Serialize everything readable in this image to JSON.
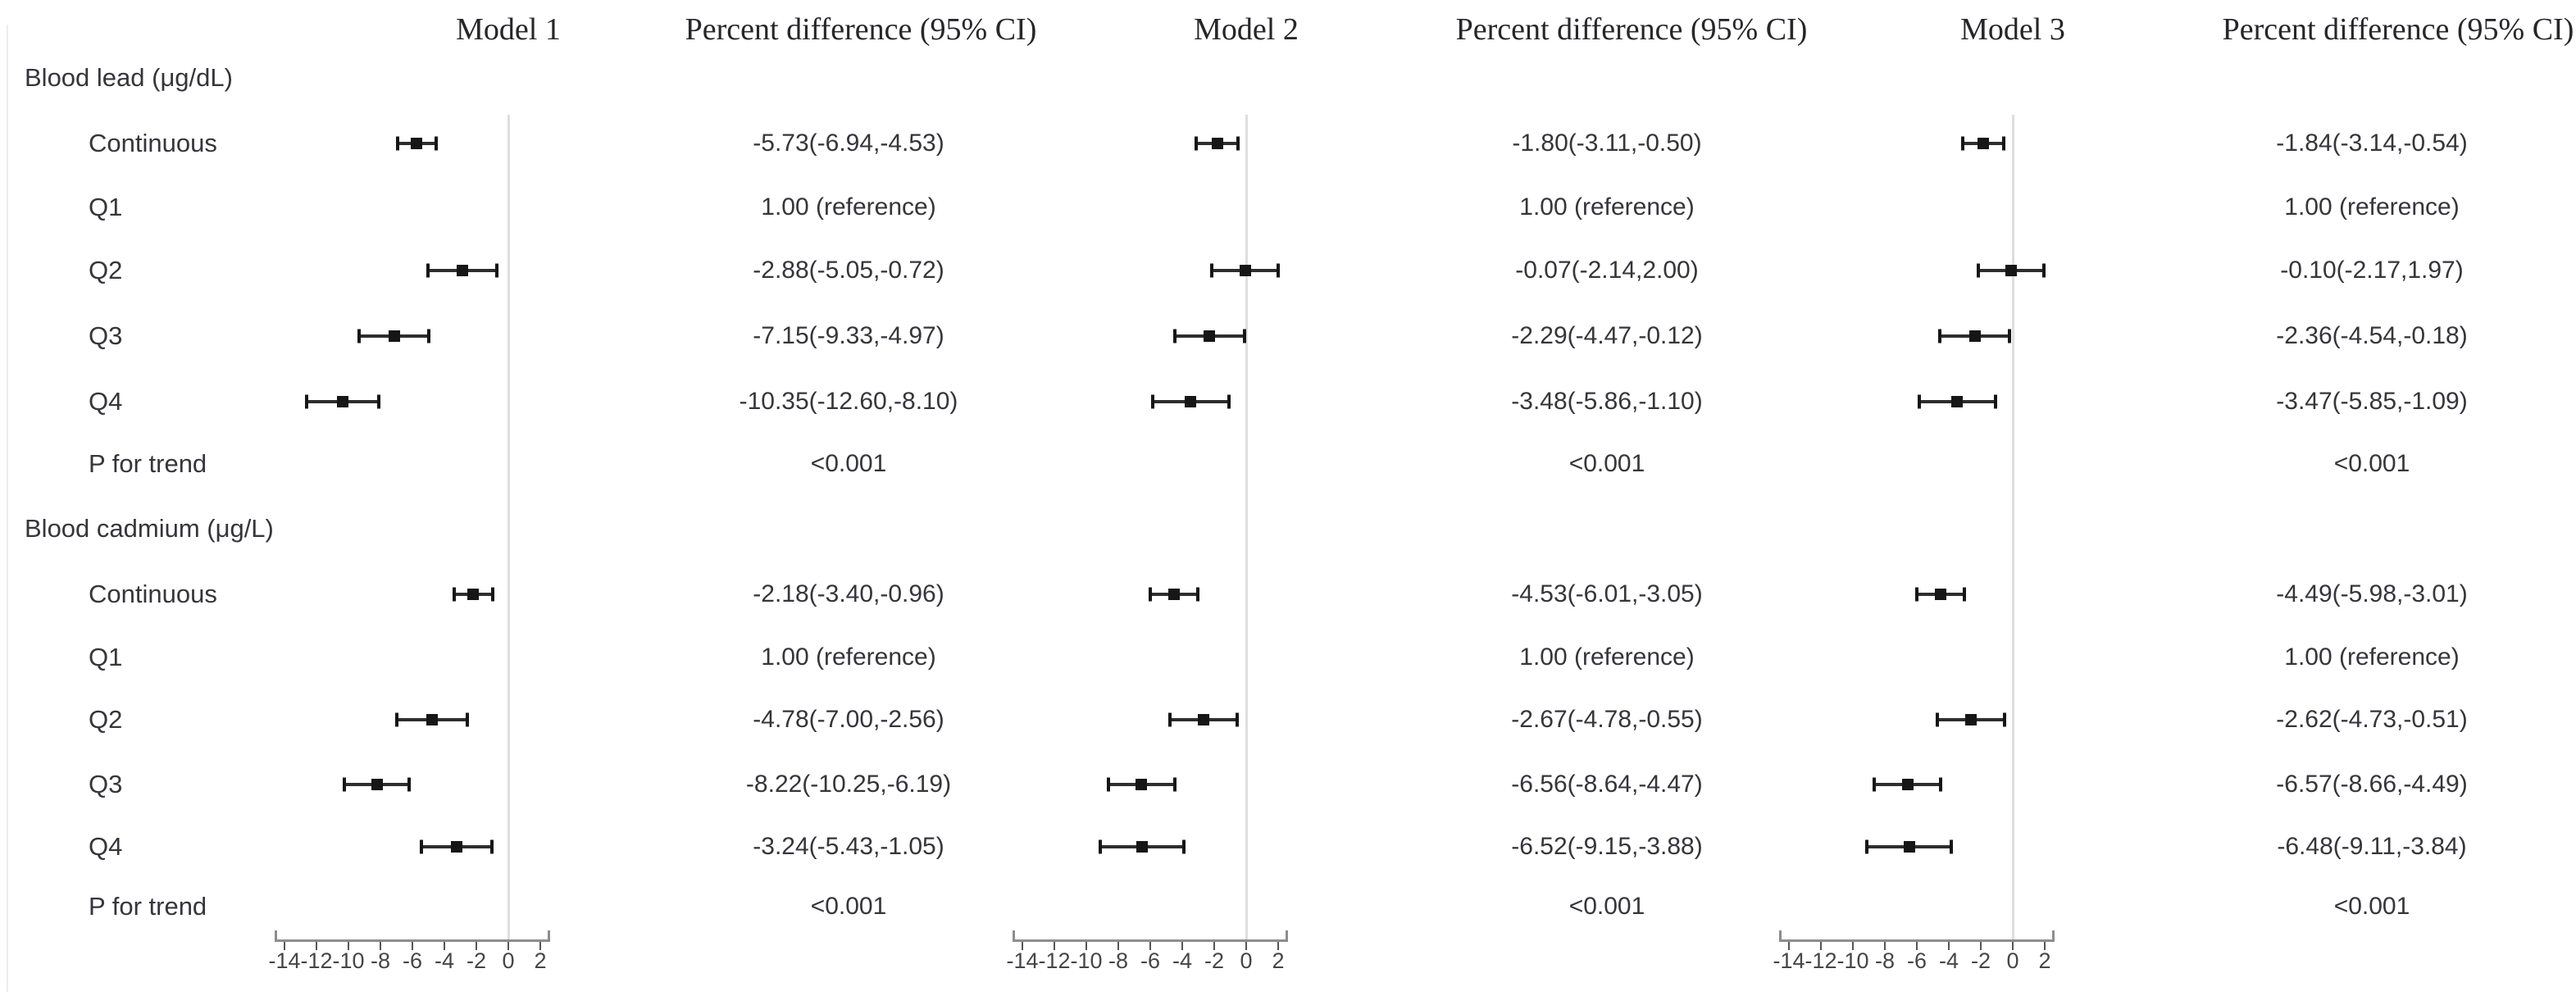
{
  "figure": {
    "columns": [
      {
        "model_label": "Model 1",
        "diff_label": "Percent difference (95% CI)"
      },
      {
        "model_label": "Model 2",
        "diff_label": "Percent difference (95% CI)"
      },
      {
        "model_label": "Model 3",
        "diff_label": "Percent difference (95% CI)"
      }
    ]
  },
  "chart_data": {
    "type": "scatter",
    "subtype": "forest_plot",
    "panels": [
      "Model 1",
      "Model 2",
      "Model 3"
    ],
    "xaxis": {
      "ticks": [
        -14,
        -12,
        -10,
        -8,
        -6,
        -4,
        -2,
        0,
        2
      ],
      "range": [
        -14.6,
        2.6
      ],
      "reference_x": 0,
      "grid": false
    },
    "sections": [
      {
        "label": "Blood lead (μg/dL)",
        "rows": [
          {
            "label": "Continuous",
            "models": [
              {
                "text": "-5.73(-6.94,-4.53)",
                "estimate": -5.73,
                "ci_low": -6.94,
                "ci_high": -4.53
              },
              {
                "text": "-1.80(-3.11,-0.50)",
                "estimate": -1.8,
                "ci_low": -3.11,
                "ci_high": -0.5
              },
              {
                "text": "-1.84(-3.14,-0.54)",
                "estimate": -1.84,
                "ci_low": -3.14,
                "ci_high": -0.54
              }
            ]
          },
          {
            "label": "Q1",
            "models": [
              {
                "text": "1.00 (reference)"
              },
              {
                "text": "1.00 (reference)"
              },
              {
                "text": "1.00 (reference)"
              }
            ]
          },
          {
            "label": "Q2",
            "models": [
              {
                "text": "-2.88(-5.05,-0.72)",
                "estimate": -2.88,
                "ci_low": -5.05,
                "ci_high": -0.72
              },
              {
                "text": "-0.07(-2.14,2.00)",
                "estimate": -0.07,
                "ci_low": -2.14,
                "ci_high": 2.0
              },
              {
                "text": "-0.10(-2.17,1.97)",
                "estimate": -0.1,
                "ci_low": -2.17,
                "ci_high": 1.97
              }
            ]
          },
          {
            "label": "Q3",
            "models": [
              {
                "text": "-7.15(-9.33,-4.97)",
                "estimate": -7.15,
                "ci_low": -9.33,
                "ci_high": -4.97
              },
              {
                "text": "-2.29(-4.47,-0.12)",
                "estimate": -2.29,
                "ci_low": -4.47,
                "ci_high": -0.12
              },
              {
                "text": "-2.36(-4.54,-0.18)",
                "estimate": -2.36,
                "ci_low": -4.54,
                "ci_high": -0.18
              }
            ]
          },
          {
            "label": "Q4",
            "models": [
              {
                "text": "-10.35(-12.60,-8.10)",
                "estimate": -10.35,
                "ci_low": -12.6,
                "ci_high": -8.1
              },
              {
                "text": "-3.48(-5.86,-1.10)",
                "estimate": -3.48,
                "ci_low": -5.86,
                "ci_high": -1.1
              },
              {
                "text": "-3.47(-5.85,-1.09)",
                "estimate": -3.47,
                "ci_low": -5.85,
                "ci_high": -1.09
              }
            ]
          },
          {
            "label": "P for trend",
            "models": [
              {
                "text": "<0.001"
              },
              {
                "text": "<0.001"
              },
              {
                "text": "<0.001"
              }
            ]
          }
        ]
      },
      {
        "label": "Blood cadmium (μg/L)",
        "rows": [
          {
            "label": "Continuous",
            "models": [
              {
                "text": "-2.18(-3.40,-0.96)",
                "estimate": -2.18,
                "ci_low": -3.4,
                "ci_high": -0.96
              },
              {
                "text": "-4.53(-6.01,-3.05)",
                "estimate": -4.53,
                "ci_low": -6.01,
                "ci_high": -3.05
              },
              {
                "text": "-4.49(-5.98,-3.01)",
                "estimate": -4.49,
                "ci_low": -5.98,
                "ci_high": -3.01
              }
            ]
          },
          {
            "label": "Q1",
            "models": [
              {
                "text": "1.00 (reference)"
              },
              {
                "text": "1.00 (reference)"
              },
              {
                "text": "1.00 (reference)"
              }
            ]
          },
          {
            "label": "Q2",
            "models": [
              {
                "text": "-4.78(-7.00,-2.56)",
                "estimate": -4.78,
                "ci_low": -7.0,
                "ci_high": -2.56
              },
              {
                "text": "-2.67(-4.78,-0.55)",
                "estimate": -2.67,
                "ci_low": -4.78,
                "ci_high": -0.55
              },
              {
                "text": "-2.62(-4.73,-0.51)",
                "estimate": -2.62,
                "ci_low": -4.73,
                "ci_high": -0.51
              }
            ]
          },
          {
            "label": "Q3",
            "models": [
              {
                "text": "-8.22(-10.25,-6.19)",
                "estimate": -8.22,
                "ci_low": -10.25,
                "ci_high": -6.19
              },
              {
                "text": "-6.56(-8.64,-4.47)",
                "estimate": -6.56,
                "ci_low": -8.64,
                "ci_high": -4.47
              },
              {
                "text": "-6.57(-8.66,-4.49)",
                "estimate": -6.57,
                "ci_low": -8.66,
                "ci_high": -4.49
              }
            ]
          },
          {
            "label": "Q4",
            "models": [
              {
                "text": "-3.24(-5.43,-1.05)",
                "estimate": -3.24,
                "ci_low": -5.43,
                "ci_high": -1.05
              },
              {
                "text": "-6.52(-9.15,-3.88)",
                "estimate": -6.52,
                "ci_low": -9.15,
                "ci_high": -3.88
              },
              {
                "text": "-6.48(-9.11,-3.84)",
                "estimate": -6.48,
                "ci_low": -9.11,
                "ci_high": -3.84
              }
            ]
          },
          {
            "label": "P for trend",
            "models": [
              {
                "text": "<0.001"
              },
              {
                "text": "<0.001"
              },
              {
                "text": "<0.001"
              }
            ]
          }
        ]
      }
    ]
  }
}
